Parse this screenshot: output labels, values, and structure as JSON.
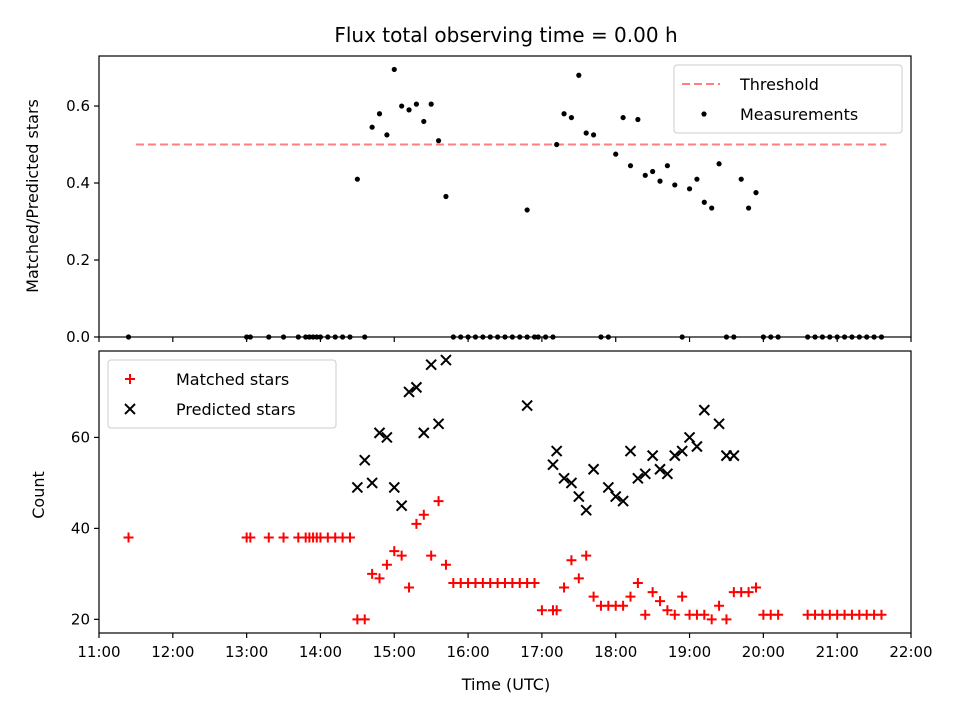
{
  "chart_data": [
    {
      "type": "scatter",
      "title": "Flux total observing time = 0.00 h",
      "xlabel": "",
      "ylabel": "Matched/Predicted stars",
      "xlim": [
        "11:00",
        "22:00"
      ],
      "ylim": [
        0.0,
        0.73
      ],
      "yticks": [
        "0.0",
        "0.2",
        "0.4",
        "0.6"
      ],
      "x_tick_labels_shown": false,
      "legend_position": "upper right",
      "series": [
        {
          "name": "Threshold",
          "style": "dashed-line",
          "color": "#ff7f7f",
          "x": [
            "11:30",
            "21:40"
          ],
          "y": [
            0.5,
            0.5
          ]
        },
        {
          "name": "Measurements",
          "style": "dot",
          "color": "#000000",
          "x": [
            "11:24",
            "13:00",
            "13:03",
            "13:18",
            "13:30",
            "13:42",
            "13:48",
            "13:51",
            "13:54",
            "13:57",
            "14:00",
            "14:06",
            "14:12",
            "14:18",
            "14:24",
            "14:30",
            "14:36",
            "14:42",
            "14:48",
            "14:54",
            "15:00",
            "15:06",
            "15:12",
            "15:18",
            "15:24",
            "15:30",
            "15:36",
            "15:42",
            "15:48",
            "15:54",
            "16:00",
            "16:06",
            "16:12",
            "16:18",
            "16:24",
            "16:30",
            "16:36",
            "16:42",
            "16:48",
            "16:54",
            "16:48",
            "16:57",
            "17:03",
            "17:09",
            "17:12",
            "17:18",
            "17:24",
            "17:30",
            "17:36",
            "17:42",
            "17:48",
            "17:54",
            "18:00",
            "18:06",
            "18:12",
            "18:18",
            "18:24",
            "18:30",
            "18:36",
            "18:42",
            "18:48",
            "18:54",
            "19:00",
            "19:06",
            "19:12",
            "19:18",
            "19:24",
            "19:30",
            "19:36",
            "19:42",
            "19:48",
            "19:54",
            "20:00",
            "20:06",
            "20:12",
            "20:36",
            "20:42",
            "20:48",
            "20:54",
            "21:00",
            "21:06",
            "21:12",
            "21:18",
            "21:24",
            "21:30",
            "21:36"
          ],
          "y": [
            0.0,
            0.0,
            0.0,
            0.0,
            0.0,
            0.0,
            0.0,
            0.0,
            0.0,
            0.0,
            0.0,
            0.0,
            0.0,
            0.0,
            0.0,
            0.41,
            0.0,
            0.545,
            0.58,
            0.525,
            0.695,
            0.6,
            0.59,
            0.605,
            0.56,
            0.605,
            0.51,
            0.365,
            0.0,
            0.0,
            0.0,
            0.0,
            0.0,
            0.0,
            0.0,
            0.0,
            0.0,
            0.0,
            0.0,
            0.0,
            0.33,
            0.0,
            0.0,
            0.0,
            0.5,
            0.58,
            0.57,
            0.68,
            0.53,
            0.525,
            0.0,
            0.0,
            0.475,
            0.57,
            0.445,
            0.565,
            0.42,
            0.43,
            0.405,
            0.445,
            0.395,
            0.0,
            0.385,
            0.41,
            0.35,
            0.335,
            0.45,
            0.0,
            0.0,
            0.41,
            0.335,
            0.375,
            0.0,
            0.0,
            0.0,
            0.0,
            0.0,
            0.0,
            0.0,
            0.0,
            0.0,
            0.0,
            0.0,
            0.0,
            0.0,
            0.0
          ]
        }
      ]
    },
    {
      "type": "scatter",
      "title": "",
      "xlabel": "Time (UTC)",
      "ylabel": "Count",
      "xlim": [
        "11:00",
        "22:00"
      ],
      "ylim": [
        17,
        79
      ],
      "yticks": [
        "20",
        "40",
        "60"
      ],
      "xticks": [
        "11:00",
        "12:00",
        "13:00",
        "14:00",
        "15:00",
        "16:00",
        "17:00",
        "18:00",
        "19:00",
        "20:00",
        "21:00",
        "22:00"
      ],
      "legend_position": "upper left",
      "series": [
        {
          "name": "Matched stars",
          "style": "plus",
          "color": "#ff0000",
          "x": [
            "11:24",
            "13:00",
            "13:03",
            "13:18",
            "13:30",
            "13:42",
            "13:48",
            "13:51",
            "13:54",
            "13:57",
            "14:00",
            "14:06",
            "14:12",
            "14:18",
            "14:24",
            "14:30",
            "14:36",
            "14:42",
            "14:48",
            "14:54",
            "15:00",
            "15:06",
            "15:12",
            "15:18",
            "15:24",
            "15:30",
            "15:36",
            "15:42",
            "15:48",
            "15:54",
            "16:00",
            "16:06",
            "16:12",
            "16:18",
            "16:24",
            "16:30",
            "16:36",
            "16:42",
            "16:48",
            "16:54",
            "17:00",
            "17:09",
            "17:12",
            "17:18",
            "17:24",
            "17:30",
            "17:36",
            "17:42",
            "17:48",
            "17:54",
            "18:00",
            "18:06",
            "18:12",
            "18:18",
            "18:24",
            "18:30",
            "18:36",
            "18:42",
            "18:48",
            "18:54",
            "19:00",
            "19:06",
            "19:12",
            "19:18",
            "19:24",
            "19:30",
            "19:36",
            "19:42",
            "19:48",
            "19:54",
            "20:00",
            "20:06",
            "20:12",
            "20:36",
            "20:42",
            "20:48",
            "20:54",
            "21:00",
            "21:06",
            "21:12",
            "21:18",
            "21:24",
            "21:30",
            "21:36"
          ],
          "y": [
            38,
            38,
            38,
            38,
            38,
            38,
            38,
            38,
            38,
            38,
            38,
            38,
            38,
            38,
            38,
            20,
            20,
            30,
            29,
            32,
            35,
            34,
            27,
            41,
            43,
            34,
            46,
            32,
            28,
            28,
            28,
            28,
            28,
            28,
            28,
            28,
            28,
            28,
            28,
            28,
            22,
            22,
            22,
            27,
            33,
            29,
            34,
            25,
            23,
            23,
            23,
            23,
            25,
            28,
            21,
            26,
            24,
            22,
            21,
            25,
            21,
            21,
            21,
            20,
            23,
            20,
            26,
            26,
            26,
            27,
            21,
            21,
            21,
            21,
            21,
            21,
            21,
            21,
            21,
            21,
            21,
            21,
            21,
            21
          ]
        },
        {
          "name": "Predicted stars",
          "style": "x",
          "color": "#000000",
          "x": [
            "14:30",
            "14:36",
            "14:42",
            "14:48",
            "14:54",
            "15:00",
            "15:06",
            "15:12",
            "15:18",
            "15:24",
            "15:30",
            "15:36",
            "15:42",
            "16:48",
            "17:09",
            "17:12",
            "17:18",
            "17:24",
            "17:30",
            "17:36",
            "17:42",
            "17:54",
            "18:00",
            "18:06",
            "18:12",
            "18:18",
            "18:24",
            "18:30",
            "18:36",
            "18:42",
            "18:48",
            "18:54",
            "19:00",
            "19:06",
            "19:12",
            "19:24",
            "19:30",
            "19:36"
          ],
          "y": [
            49,
            55,
            50,
            61,
            60,
            49,
            45,
            70,
            71,
            61,
            76,
            63,
            77,
            67,
            54,
            57,
            51,
            50,
            47,
            44,
            53,
            49,
            47,
            46,
            57,
            51,
            52,
            56,
            53,
            52,
            56,
            57,
            60,
            58,
            66,
            63,
            56,
            56
          ]
        }
      ]
    }
  ]
}
